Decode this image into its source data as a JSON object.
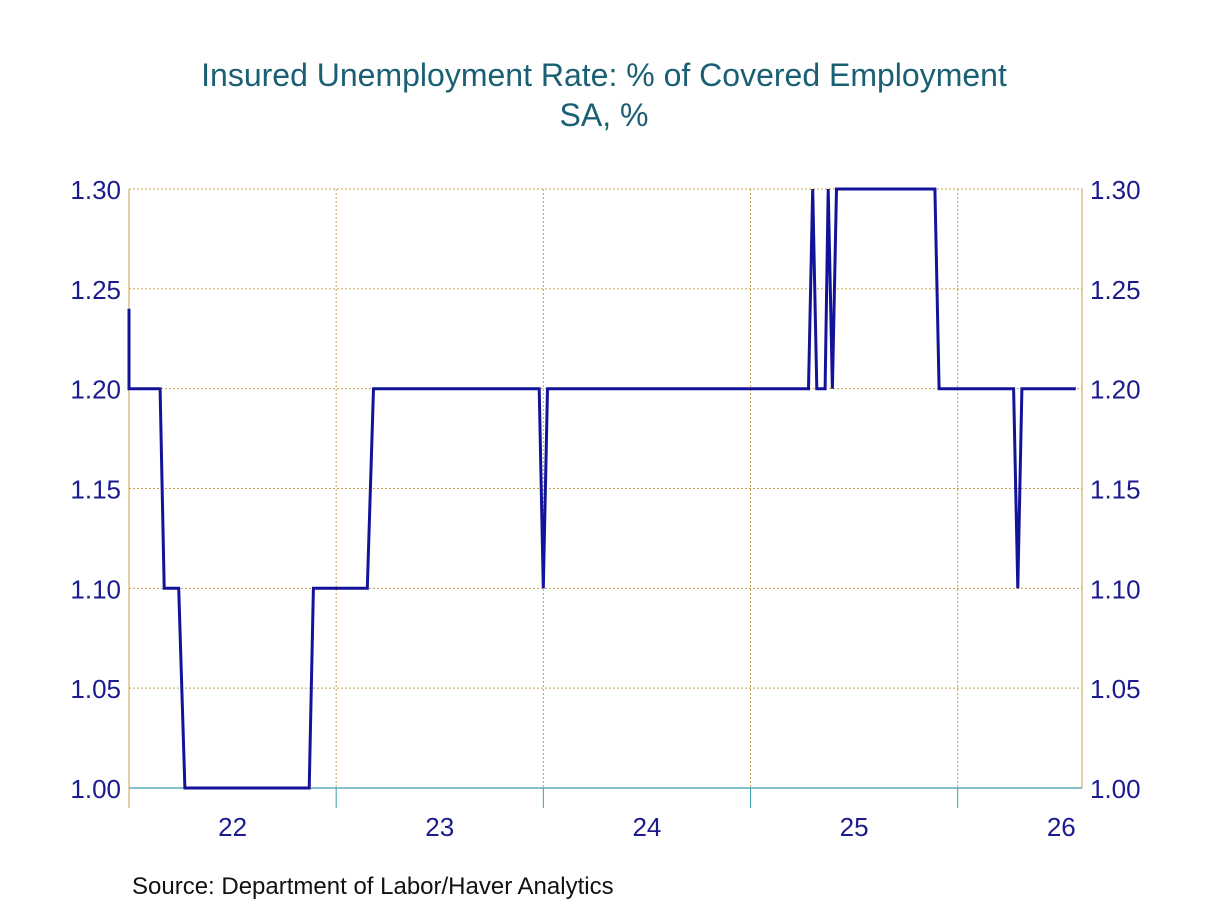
{
  "chart_data": {
    "type": "line",
    "title": "Insured Unemployment Rate: % of Covered Employment",
    "subtitle": "SA, %",
    "source": "Source:  Department of Labor/Haver Analytics",
    "x_tick_labels": [
      "22",
      "23",
      "24",
      "25",
      "26"
    ],
    "y_tick_labels": [
      "1.00",
      "1.05",
      "1.10",
      "1.15",
      "1.20",
      "1.25",
      "1.30"
    ],
    "ylim": [
      1.0,
      1.3
    ],
    "xlim": [
      2021.5,
      2026.1
    ],
    "grid": true,
    "colors": {
      "title": "#1a5f73",
      "axis_text": "#1b1b8f",
      "grid": "#c8a24a",
      "line": "#13139a",
      "frame": "#3a9fb0",
      "source": "#111111"
    },
    "series": [
      {
        "values": [
          [
            2021.5,
            1.24
          ],
          [
            2021.5,
            1.2
          ],
          [
            2021.65,
            1.2
          ],
          [
            2021.67,
            1.1
          ],
          [
            2021.74,
            1.1
          ],
          [
            2021.77,
            1.0
          ],
          [
            2022.37,
            1.0
          ],
          [
            2022.39,
            1.1
          ],
          [
            2022.65,
            1.1
          ],
          [
            2022.68,
            1.2
          ],
          [
            2023.48,
            1.2
          ],
          [
            2023.5,
            1.1
          ],
          [
            2023.52,
            1.2
          ],
          [
            2024.78,
            1.2
          ],
          [
            2024.8,
            1.3
          ],
          [
            2024.82,
            1.2
          ],
          [
            2024.86,
            1.2
          ],
          [
            2024.875,
            1.3
          ],
          [
            2024.895,
            1.2
          ],
          [
            2024.915,
            1.3
          ],
          [
            2025.39,
            1.3
          ],
          [
            2025.41,
            1.2
          ],
          [
            2025.77,
            1.2
          ],
          [
            2025.79,
            1.1
          ],
          [
            2025.81,
            1.2
          ],
          [
            2026.07,
            1.2
          ]
        ]
      }
    ]
  }
}
